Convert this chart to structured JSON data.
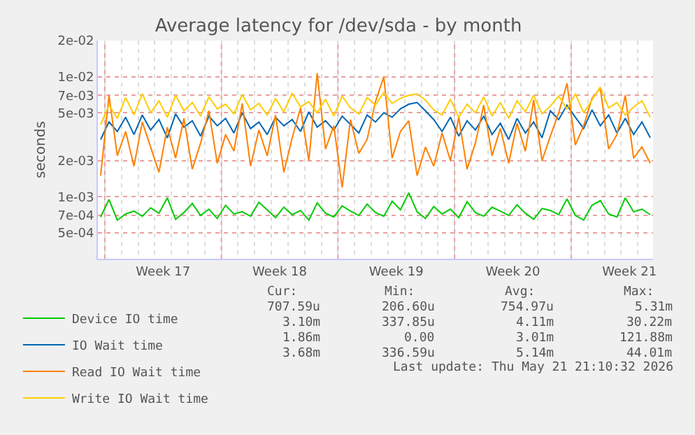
{
  "chart_data": {
    "type": "line",
    "title": "Average latency for /dev/sda - by month",
    "ylabel": "seconds",
    "x": [
      "2026-04-19T18:00",
      "2026-04-20T06:00",
      "2026-04-20T18:00",
      "2026-04-21T06:00",
      "2026-04-21T18:00",
      "2026-04-22T06:00",
      "2026-04-22T18:00",
      "2026-04-23T06:00",
      "2026-04-23T18:00",
      "2026-04-24T06:00",
      "2026-04-24T18:00",
      "2026-04-25T06:00",
      "2026-04-25T18:00",
      "2026-04-26T06:00",
      "2026-04-26T18:00",
      "2026-04-27T06:00",
      "2026-04-27T18:00",
      "2026-04-28T06:00",
      "2026-04-28T18:00",
      "2026-04-29T06:00",
      "2026-04-29T18:00",
      "2026-04-30T06:00",
      "2026-04-30T18:00",
      "2026-05-01T06:00",
      "2026-05-01T18:00",
      "2026-05-02T06:00",
      "2026-05-02T18:00",
      "2026-05-03T06:00",
      "2026-05-03T18:00",
      "2026-05-04T06:00",
      "2026-05-04T18:00",
      "2026-05-05T06:00",
      "2026-05-05T18:00",
      "2026-05-06T06:00",
      "2026-05-06T18:00",
      "2026-05-07T06:00",
      "2026-05-07T18:00",
      "2026-05-08T06:00",
      "2026-05-08T18:00",
      "2026-05-09T06:00",
      "2026-05-09T18:00",
      "2026-05-10T06:00",
      "2026-05-10T18:00",
      "2026-05-11T06:00",
      "2026-05-11T18:00",
      "2026-05-12T06:00",
      "2026-05-12T18:00",
      "2026-05-13T06:00",
      "2026-05-13T18:00",
      "2026-05-14T06:00",
      "2026-05-14T18:00",
      "2026-05-15T06:00",
      "2026-05-15T18:00",
      "2026-05-16T06:00",
      "2026-05-16T18:00",
      "2026-05-17T06:00",
      "2026-05-17T18:00",
      "2026-05-18T06:00",
      "2026-05-18T18:00",
      "2026-05-19T06:00",
      "2026-05-19T18:00",
      "2026-05-20T06:00",
      "2026-05-20T18:00",
      "2026-05-21T06:00",
      "2026-05-21T18:00",
      "2026-05-22T06:00",
      "2026-05-22T18:00"
    ],
    "series": [
      {
        "name": "Device IO time",
        "color": "#00cc00",
        "values": [
          0.00068,
          0.00095,
          0.00064,
          0.00072,
          0.00076,
          0.00069,
          0.00081,
          0.00073,
          0.00098,
          0.00065,
          0.00074,
          0.00088,
          0.0007,
          0.00079,
          0.00066,
          0.00085,
          0.00072,
          0.00075,
          0.00069,
          0.0009,
          0.00078,
          0.00067,
          0.00082,
          0.00071,
          0.00077,
          0.00064,
          0.00089,
          0.00073,
          0.00068,
          0.00084,
          0.00076,
          0.0007,
          0.00087,
          0.00074,
          0.00069,
          0.00092,
          0.00078,
          0.00108,
          0.00075,
          0.00066,
          0.00083,
          0.00072,
          0.00079,
          0.00067,
          0.00091,
          0.00074,
          0.00069,
          0.00082,
          0.00076,
          0.0007,
          0.00086,
          0.00073,
          0.00065,
          0.0008,
          0.00077,
          0.00071,
          0.00096,
          0.0007,
          0.00064,
          0.00085,
          0.00093,
          0.00072,
          0.00068,
          0.00098,
          0.00075,
          0.00079,
          0.00071
        ]
      },
      {
        "name": "IO Wait time",
        "color": "#0066b3",
        "values": [
          0.003,
          0.0042,
          0.0035,
          0.0046,
          0.0033,
          0.0048,
          0.0036,
          0.0044,
          0.0031,
          0.0049,
          0.0038,
          0.0043,
          0.0032,
          0.0047,
          0.0039,
          0.0045,
          0.0034,
          0.005,
          0.0037,
          0.0042,
          0.0033,
          0.0046,
          0.0039,
          0.0044,
          0.0035,
          0.0051,
          0.0038,
          0.0043,
          0.0036,
          0.0047,
          0.004,
          0.0034,
          0.0048,
          0.0042,
          0.005,
          0.0046,
          0.0054,
          0.0059,
          0.0061,
          0.0052,
          0.0044,
          0.0035,
          0.0046,
          0.0032,
          0.0043,
          0.0036,
          0.0047,
          0.0033,
          0.0041,
          0.003,
          0.0045,
          0.0034,
          0.0042,
          0.0031,
          0.0052,
          0.0044,
          0.0058,
          0.0046,
          0.0037,
          0.0053,
          0.0039,
          0.0048,
          0.0034,
          0.0045,
          0.0033,
          0.0042,
          0.0031
        ]
      },
      {
        "name": "Read IO Wait time",
        "color": "#ff8000",
        "values": [
          0.0015,
          0.007,
          0.0022,
          0.0035,
          0.0018,
          0.0042,
          0.0026,
          0.0016,
          0.0038,
          0.0021,
          0.0045,
          0.0017,
          0.0028,
          0.0052,
          0.0019,
          0.0033,
          0.0024,
          0.006,
          0.0018,
          0.0036,
          0.0022,
          0.0048,
          0.0016,
          0.0031,
          0.0055,
          0.002,
          0.0107,
          0.0025,
          0.0039,
          0.0012,
          0.0044,
          0.0023,
          0.003,
          0.0062,
          0.01,
          0.0021,
          0.0035,
          0.0043,
          0.0015,
          0.0026,
          0.0018,
          0.0034,
          0.002,
          0.0046,
          0.0017,
          0.0028,
          0.0058,
          0.0022,
          0.0037,
          0.0019,
          0.0041,
          0.0024,
          0.0064,
          0.002,
          0.0032,
          0.005,
          0.0088,
          0.0027,
          0.0039,
          0.0066,
          0.008,
          0.0025,
          0.0033,
          0.007,
          0.0021,
          0.0026,
          0.0019
        ]
      },
      {
        "name": "Write IO Wait time",
        "color": "#ffcc00",
        "values": [
          0.004,
          0.0058,
          0.0045,
          0.0067,
          0.0048,
          0.0072,
          0.005,
          0.0063,
          0.0046,
          0.007,
          0.0052,
          0.0061,
          0.0047,
          0.0068,
          0.0054,
          0.0059,
          0.0049,
          0.0071,
          0.0053,
          0.006,
          0.0048,
          0.0066,
          0.0051,
          0.0073,
          0.0056,
          0.0062,
          0.005,
          0.0065,
          0.0047,
          0.0069,
          0.0055,
          0.0049,
          0.0067,
          0.0058,
          0.0074,
          0.006,
          0.0066,
          0.007,
          0.0072,
          0.0064,
          0.0053,
          0.0048,
          0.0065,
          0.0046,
          0.0059,
          0.005,
          0.0068,
          0.0047,
          0.0061,
          0.0045,
          0.0063,
          0.0051,
          0.007,
          0.0049,
          0.0057,
          0.0069,
          0.0054,
          0.0072,
          0.005,
          0.0064,
          0.0082,
          0.0055,
          0.0061,
          0.0048,
          0.0056,
          0.0063,
          0.0046
        ]
      }
    ],
    "xlim": [
      "2026-04-19T14:00",
      "2026-05-22T22:00"
    ],
    "xticks": [
      {
        "value": "2026-04-20",
        "label": null
      },
      {
        "value": "2026-04-23T12:00",
        "label": "Week 17"
      },
      {
        "value": "2026-04-27",
        "label": null
      },
      {
        "value": "2026-04-30T12:00",
        "label": "Week 18"
      },
      {
        "value": "2026-05-04",
        "label": null
      },
      {
        "value": "2026-05-07T12:00",
        "label": "Week 19"
      },
      {
        "value": "2026-05-11",
        "label": null
      },
      {
        "value": "2026-05-14T12:00",
        "label": "Week 20"
      },
      {
        "value": "2026-05-18",
        "label": null
      },
      {
        "value": "2026-05-21T12:00",
        "label": "Week 21"
      }
    ],
    "ylim": [
      0.000305,
      0.02
    ],
    "yticks": [
      {
        "value": 0.0005,
        "label": "5e-04"
      },
      {
        "value": 0.0007,
        "label": "7e-04"
      },
      {
        "value": 0.001,
        "label": "1e-03"
      },
      {
        "value": 0.002,
        "label": "2e-03"
      },
      {
        "value": 0.005,
        "label": "5e-03"
      },
      {
        "value": 0.007,
        "label": "7e-03"
      },
      {
        "value": 0.01,
        "label": "1e-02"
      },
      {
        "value": 0.02,
        "label": "2e-02"
      }
    ],
    "log": "y",
    "grid": true,
    "legend": "bottom left",
    "line_style": "solid",
    "marker": "none",
    "annotations": [
      "Cur:",
      "Min:",
      "Avg:",
      "Max:",
      "707.59u",
      "206.60u",
      "754.97u",
      "5.31m",
      "3.10m",
      "337.85u",
      "4.11m",
      "30.22m",
      "1.86m",
      "0.00",
      "3.01m",
      "121.88m",
      "3.68m",
      "336.59u",
      "5.14m",
      "44.01m",
      "Last update: Thu May 21 21:10:32 2026"
    ]
  }
}
